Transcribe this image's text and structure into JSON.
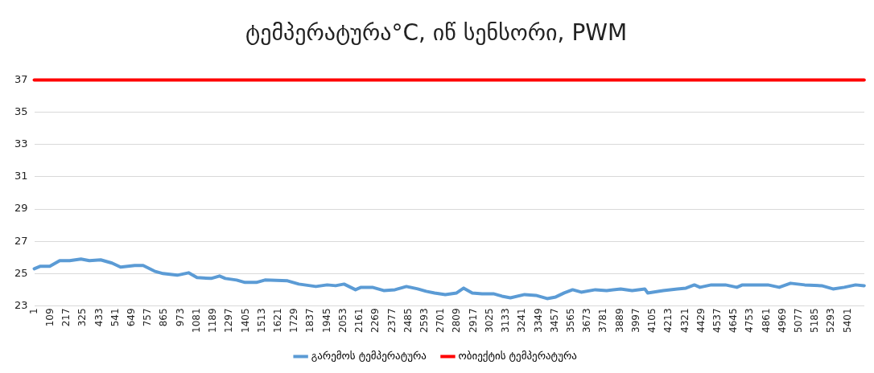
{
  "chart_data": {
    "type": "line",
    "title": "ტემპერატურა°C, იწ სენსორი, PWM",
    "xlim": [
      1,
      5510
    ],
    "xticks": [
      1,
      109,
      217,
      325,
      433,
      541,
      649,
      757,
      865,
      973,
      1081,
      1189,
      1297,
      1405,
      1513,
      1621,
      1729,
      1837,
      1945,
      2053,
      2161,
      2269,
      2377,
      2485,
      2593,
      2701,
      2809,
      2917,
      3025,
      3133,
      3241,
      3349,
      3457,
      3565,
      3673,
      3781,
      3889,
      3997,
      4105,
      4213,
      4321,
      4429,
      4537,
      4645,
      4753,
      4861,
      4969,
      5077,
      5185,
      5293,
      5401
    ],
    "ylim": [
      23,
      37
    ],
    "yticks": [
      23,
      25,
      27,
      29,
      31,
      33,
      35,
      37
    ],
    "grid": "y",
    "legend": "bottom",
    "marker": "none",
    "line_style": "solid",
    "series": [
      {
        "name": "გარემოს ტემპერატურა",
        "color": "#5b9bd5",
        "x": [
          1,
          39,
          104,
          170,
          236,
          311,
          367,
          442,
          517,
          574,
          668,
          724,
          799,
          856,
          950,
          1025,
          1081,
          1175,
          1231,
          1269,
          1344,
          1400,
          1475,
          1532,
          1682,
          1757,
          1870,
          1945,
          2001,
          2057,
          2133,
          2170,
          2245,
          2320,
          2395,
          2471,
          2546,
          2602,
          2658,
          2729,
          2804,
          2851,
          2908,
          2973,
          3048,
          3105,
          3161,
          3255,
          3330,
          3405,
          3462,
          3518,
          3574,
          3631,
          3725,
          3800,
          3893,
          3969,
          4053,
          4072,
          4175,
          4269,
          4326,
          4382,
          4419,
          4494,
          4588,
          4664,
          4701,
          4870,
          4945,
          5020,
          5114,
          5227,
          5302,
          5377,
          5452,
          5509
        ],
        "values": [
          25.3,
          25.45,
          25.45,
          25.8,
          25.8,
          25.9,
          25.8,
          25.85,
          25.65,
          25.4,
          25.5,
          25.5,
          25.15,
          25.0,
          24.9,
          25.05,
          24.75,
          24.7,
          24.85,
          24.7,
          24.6,
          24.45,
          24.45,
          24.6,
          24.55,
          24.35,
          24.2,
          24.3,
          24.25,
          24.35,
          24.0,
          24.15,
          24.15,
          23.95,
          24.0,
          24.2,
          24.05,
          23.9,
          23.8,
          23.7,
          23.8,
          24.1,
          23.8,
          23.75,
          23.75,
          23.6,
          23.5,
          23.7,
          23.65,
          23.45,
          23.55,
          23.8,
          24.0,
          23.85,
          24.0,
          23.95,
          24.05,
          23.95,
          24.05,
          23.8,
          23.95,
          24.05,
          24.1,
          24.3,
          24.15,
          24.3,
          24.3,
          24.15,
          24.3,
          24.3,
          24.15,
          24.4,
          24.3,
          24.25,
          24.05,
          24.15,
          24.3,
          24.25
        ]
      },
      {
        "name": "ობიექტის ტემპერატურა",
        "color": "#ff0000",
        "x": [
          1,
          1000,
          2000,
          3000,
          4000,
          5000,
          5509
        ],
        "values": [
          37,
          37,
          37,
          37,
          37,
          37,
          37
        ]
      }
    ]
  }
}
